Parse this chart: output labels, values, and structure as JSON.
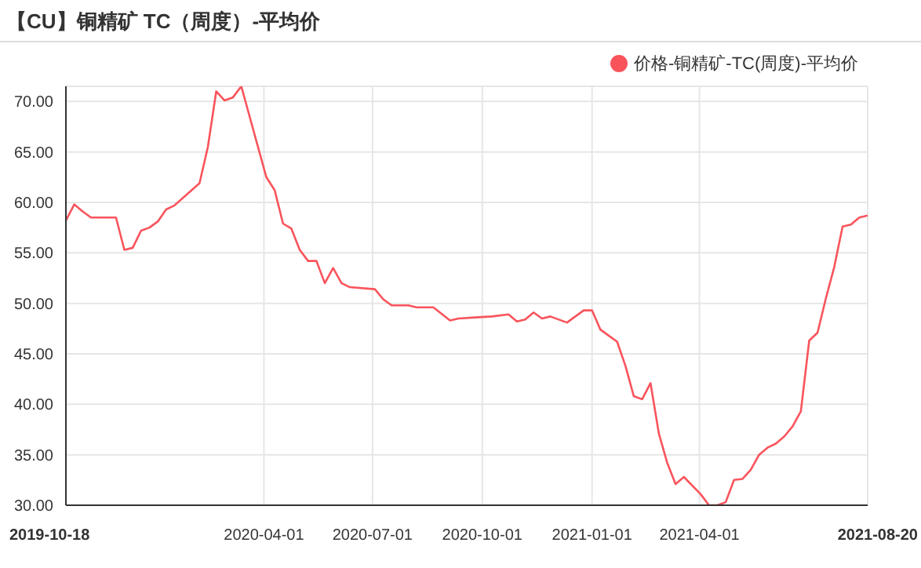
{
  "chart_data": {
    "type": "line",
    "title": "【CU】铜精矿 TC（周度）-平均价",
    "x": [
      "2019-10-18",
      "2019-10-25",
      "2019-11-01",
      "2019-11-08",
      "2019-11-29",
      "2019-12-06",
      "2019-12-13",
      "2019-12-20",
      "2019-12-27",
      "2020-01-03",
      "2020-01-10",
      "2020-01-17",
      "2020-02-07",
      "2020-02-14",
      "2020-02-21",
      "2020-02-28",
      "2020-03-06",
      "2020-03-13",
      "2020-04-03",
      "2020-04-10",
      "2020-04-17",
      "2020-04-24",
      "2020-05-01",
      "2020-05-08",
      "2020-05-15",
      "2020-05-22",
      "2020-05-29",
      "2020-06-05",
      "2020-06-12",
      "2020-07-03",
      "2020-07-10",
      "2020-07-17",
      "2020-07-31",
      "2020-08-07",
      "2020-08-21",
      "2020-09-04",
      "2020-09-11",
      "2020-09-25",
      "2020-10-09",
      "2020-10-23",
      "2020-10-30",
      "2020-11-06",
      "2020-11-13",
      "2020-11-20",
      "2020-11-27",
      "2020-12-11",
      "2020-12-25",
      "2021-01-01",
      "2021-01-08",
      "2021-01-15",
      "2021-01-22",
      "2021-01-29",
      "2021-02-05",
      "2021-02-12",
      "2021-02-19",
      "2021-02-26",
      "2021-03-05",
      "2021-03-12",
      "2021-03-19",
      "2021-04-02",
      "2021-04-09",
      "2021-04-16",
      "2021-04-23",
      "2021-04-30",
      "2021-05-07",
      "2021-05-14",
      "2021-05-21",
      "2021-05-28",
      "2021-06-04",
      "2021-06-11",
      "2021-06-18",
      "2021-06-25",
      "2021-07-02",
      "2021-07-09",
      "2021-07-16",
      "2021-07-23",
      "2021-07-30",
      "2021-08-06",
      "2021-08-13",
      "2021-08-20"
    ],
    "series": [
      {
        "name": "价格-铜精矿-TC(周度)-平均价",
        "color": "#f9545c",
        "values": [
          58.2,
          59.8,
          59.1,
          58.5,
          58.5,
          55.3,
          55.5,
          57.2,
          57.5,
          58.1,
          59.3,
          59.7,
          61.9,
          65.5,
          71.0,
          70.1,
          70.4,
          71.5,
          62.5,
          61.2,
          57.9,
          57.4,
          55.3,
          54.2,
          54.2,
          52.0,
          53.5,
          52.0,
          51.6,
          51.4,
          50.4,
          49.8,
          49.8,
          49.6,
          49.6,
          48.3,
          48.5,
          48.6,
          48.7,
          48.9,
          48.2,
          48.4,
          49.1,
          48.5,
          48.7,
          48.1,
          49.3,
          49.3,
          47.4,
          46.8,
          46.2,
          43.8,
          40.8,
          40.5,
          42.1,
          37.1,
          34.2,
          32.1,
          32.8,
          31.1,
          30.0,
          30.0,
          30.3,
          32.5,
          32.6,
          33.5,
          35.0,
          35.7,
          36.1,
          36.8,
          37.8,
          39.3,
          46.3,
          47.1,
          50.5,
          53.6,
          57.6,
          57.8,
          58.5,
          58.7
        ]
      }
    ],
    "xlim": [
      "2019-10-18",
      "2021-08-20"
    ],
    "xticks": [
      "2019-10-18",
      "2020-04-01",
      "2020-07-01",
      "2020-10-01",
      "2021-01-01",
      "2021-04-01",
      "2021-08-20"
    ],
    "ylim": [
      30,
      71.5
    ],
    "yticks": [
      {
        "value": 30,
        "label": "30.00"
      },
      {
        "value": 35,
        "label": "35.00"
      },
      {
        "value": 40,
        "label": "40.00"
      },
      {
        "value": 45,
        "label": "45.00"
      },
      {
        "value": 50,
        "label": "50.00"
      },
      {
        "value": 55,
        "label": "55.00"
      },
      {
        "value": 60,
        "label": "60.00"
      },
      {
        "value": 65,
        "label": "65.00"
      },
      {
        "value": 70,
        "label": "70.00"
      }
    ],
    "grid": true,
    "legend": "top right",
    "marker": "none",
    "line_style": "solid"
  }
}
